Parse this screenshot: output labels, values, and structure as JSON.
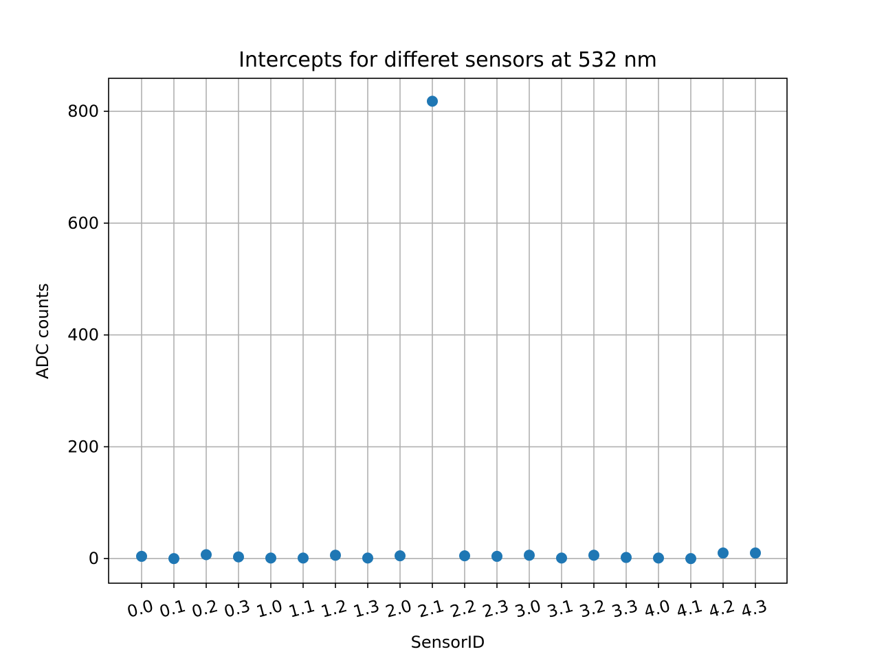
{
  "chart_data": {
    "type": "scatter",
    "title": "Intercepts for differet sensors at 532 nm",
    "xlabel": "SensorID",
    "ylabel": "ADC counts",
    "categories": [
      "0.0",
      "0.1",
      "0.2",
      "0.3",
      "1.0",
      "1.1",
      "1.2",
      "1.3",
      "2.0",
      "2.1",
      "2.2",
      "2.3",
      "3.0",
      "3.1",
      "3.2",
      "3.3",
      "4.0",
      "4.1",
      "4.2",
      "4.3"
    ],
    "values": [
      4,
      0,
      7,
      3,
      1,
      1,
      6,
      1,
      5,
      818,
      5,
      4,
      6,
      1,
      6,
      2,
      1,
      0,
      10,
      10
    ],
    "yticks": [
      0,
      200,
      400,
      600,
      800
    ],
    "ylim": [
      -44,
      859
    ],
    "grid": true,
    "marker_color": "#1f77b4",
    "xtick_rotation_deg": -15
  }
}
